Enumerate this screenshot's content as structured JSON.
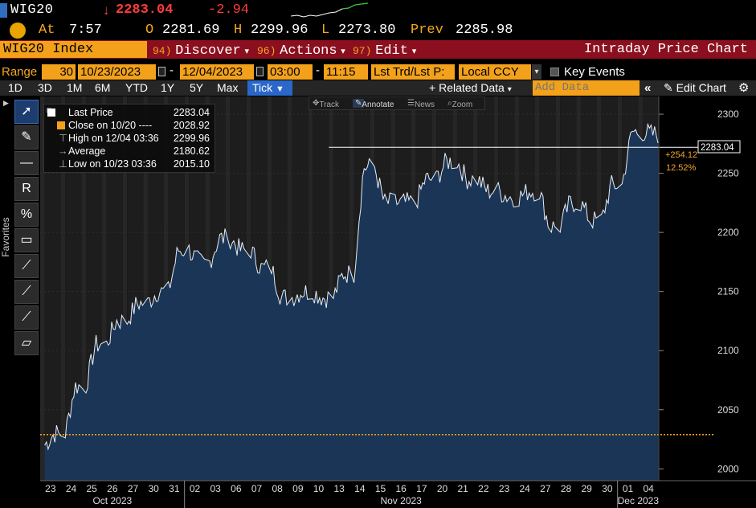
{
  "header": {
    "ticker": "WIG20",
    "last_price": "2283.04",
    "net_change": "-2.94",
    "down_arrow_icon": "down-arrow-icon"
  },
  "quote": {
    "at_label": "At",
    "time": "7:57",
    "open_label": "O",
    "open": "2281.69",
    "high_label": "H",
    "high": "2299.96",
    "low_label": "L",
    "low": "2273.80",
    "prev_label": "Prev",
    "prev": "2285.98"
  },
  "menu": {
    "index_name": "WIG20 Index",
    "discover_num": "94)",
    "discover": "Discover",
    "actions_num": "96)",
    "actions": "Actions",
    "edit_num": "97)",
    "edit": "Edit",
    "title": "Intraday Price Chart"
  },
  "range": {
    "label": "Range",
    "days": "30",
    "start_date": "10/23/2023",
    "end_date": "12/04/2023",
    "start_time": "03:00",
    "end_time": "11:15",
    "field": "Lst Trd/Lst P:",
    "currency": "Local CCY",
    "key_events": "Key Events"
  },
  "toolbar": {
    "periods": [
      "1D",
      "3D",
      "1M",
      "6M",
      "YTD",
      "1Y",
      "5Y",
      "Max"
    ],
    "tick": "Tick",
    "related_data": "Related Data",
    "add_data_placeholder": "Add Data",
    "edit_chart": "Edit Chart"
  },
  "side": {
    "favorites": "Favorites"
  },
  "mini_toolbar": {
    "track": "Track",
    "annotate": "Annotate",
    "news": "News",
    "zoom": "Zoom"
  },
  "legend": {
    "last_price_label": "Last Price",
    "last_price_value": "2283.04",
    "close_label": "Close on 10/20 ----",
    "close_value": "2028.92",
    "high_label": "High on 12/04 03:36",
    "high_value": "2299.96",
    "average_label": "Average",
    "average_value": "2180.62",
    "low_label": "Low on 10/23 03:36",
    "low_value": "2015.10"
  },
  "annotations": {
    "last_price_tag": "2283.04",
    "change_abs": "+254.12",
    "change_pct": "12.52%"
  },
  "colors": {
    "accent_orange": "#f3a11b",
    "menu_red": "#8b0f1e",
    "down_red": "#ff3b3b",
    "area_fill": "#1b3556",
    "tick_blue": "#2a67c8"
  },
  "chart_data": {
    "type": "area",
    "y_ticks": [
      2000,
      2050,
      2100,
      2150,
      2200,
      2250,
      2300
    ],
    "ylim": [
      1990,
      2315
    ],
    "x_day_labels": [
      "23",
      "24",
      "25",
      "26",
      "27",
      "30",
      "31",
      "02",
      "03",
      "06",
      "07",
      "08",
      "09",
      "10",
      "13",
      "14",
      "15",
      "16",
      "17",
      "20",
      "21",
      "22",
      "23",
      "24",
      "27",
      "28",
      "29",
      "30",
      "01",
      "04"
    ],
    "month_labels": [
      "Oct 2023",
      "Nov 2023",
      "Dec 2023"
    ],
    "reference_lines": [
      {
        "value": 2028.92,
        "style": "dotted",
        "color": "#f3a11b"
      },
      {
        "value": 2272,
        "style": "solid",
        "color": "#ffffff"
      }
    ],
    "series": [
      {
        "name": "Last Price",
        "x": [
          "10/23",
          "10/24",
          "10/25",
          "10/26",
          "10/27",
          "10/30",
          "10/31",
          "11/02",
          "11/03",
          "11/06",
          "11/07",
          "11/08",
          "11/09",
          "11/10",
          "11/13",
          "11/14",
          "11/15",
          "11/16",
          "11/17",
          "11/20",
          "11/21",
          "11/22",
          "11/23",
          "11/24",
          "11/27",
          "11/28",
          "11/29",
          "11/30",
          "12/01",
          "12/04"
        ],
        "values": [
          2030,
          2070,
          2105,
          2125,
          2140,
          2150,
          2185,
          2175,
          2195,
          2185,
          2170,
          2145,
          2150,
          2145,
          2165,
          2255,
          2225,
          2225,
          2245,
          2260,
          2245,
          2235,
          2230,
          2235,
          2205,
          2225,
          2210,
          2240,
          2285,
          2283
        ]
      }
    ]
  }
}
